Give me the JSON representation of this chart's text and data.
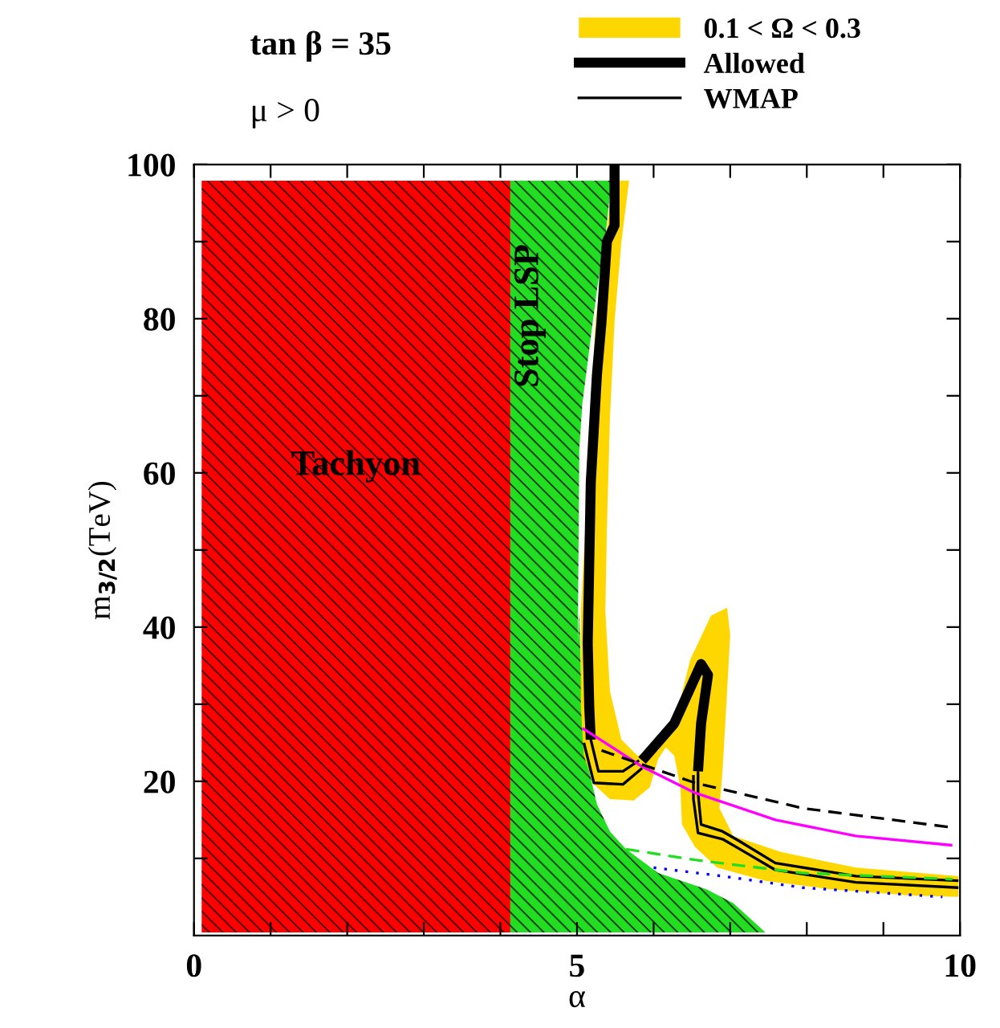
{
  "chart_data": {
    "type": "line",
    "xlabel": "α",
    "ylabel": "m$_{3/2}$(TeV)",
    "xlim": [
      0,
      10
    ],
    "ylim": [
      0,
      100
    ],
    "xticks": [
      0,
      {
        "value": 1,
        "label": null
      },
      {
        "value": 2,
        "label": null
      },
      {
        "value": 3,
        "label": null
      },
      {
        "value": 4,
        "label": null
      },
      5,
      {
        "value": 6,
        "label": null
      },
      {
        "value": 7,
        "label": null
      },
      {
        "value": 8,
        "label": null
      },
      {
        "value": 9,
        "label": null
      },
      10
    ],
    "yticks": [
      {
        "value": 10,
        "label": null
      },
      20,
      {
        "value": 30,
        "label": null
      },
      40,
      {
        "value": 50,
        "label": null
      },
      60,
      {
        "value": 70,
        "label": null
      },
      80,
      {
        "value": 90,
        "label": null
      },
      100
    ],
    "grid": false,
    "legend": "top",
    "annotations": [
      "tan β = 35",
      "μ > 0"
    ],
    "series": [
      {
        "type": "area",
        "name": "Tachyon",
        "color": "#ff0000",
        "x": [
          0.1,
          4.13,
          4.13,
          0.1
        ],
        "values": [
          0.4,
          0.4,
          97.9,
          97.9
        ]
      },
      {
        "type": "area",
        "name": "Stop LSP",
        "color": "#22dd22",
        "x": [
          4.13,
          5.45,
          5.37,
          5.26,
          5.16,
          5.07,
          5.03,
          5.01,
          5.03,
          5.07,
          5.16,
          5.26,
          5.43,
          5.64,
          6.06,
          6.69,
          7.04,
          7.46,
          4.13
        ],
        "values": [
          97.9,
          97.9,
          90.6,
          83.7,
          76,
          69,
          63,
          38,
          42,
          26.9,
          21.3,
          17,
          13.5,
          11.2,
          8.1,
          6,
          4.2,
          0.4,
          0.4
        ]
      },
      {
        "type": "area",
        "name": "0.1 < Ω < 0.3",
        "color": "#ffd700",
        "x": [
          5.47,
          5.68,
          5.58,
          5.49,
          5.43,
          5.39,
          5.37,
          5.43,
          5.58,
          5.79,
          6.06,
          6.27,
          6.48,
          6.75,
          6.96,
          7.0,
          6.96,
          6.9,
          6.86,
          7.04,
          7.67,
          8.64,
          9.98,
          9.98,
          9.35,
          8.3,
          7.46,
          6.83,
          6.54,
          6.37,
          6.35,
          6.27,
          6.16,
          6.06,
          5.95,
          5.74,
          5.43,
          5.22,
          5.09,
          5.05,
          5.05,
          5.14,
          5.24
        ],
        "values": [
          97.9,
          97.9,
          90,
          79.6,
          67.1,
          52.5,
          42.1,
          31.7,
          25.4,
          23.3,
          24,
          27.5,
          35.8,
          41.5,
          42.5,
          39,
          31.7,
          21.3,
          16.5,
          12.9,
          10.8,
          8.8,
          7.7,
          5.0,
          5.2,
          6.0,
          7.1,
          8.8,
          11.5,
          14.4,
          19.2,
          23.3,
          24.4,
          22.9,
          19.2,
          17.5,
          17.7,
          19.6,
          23.3,
          29.6,
          42.1,
          58.8,
          79.6
        ]
      },
      {
        "name": "Allowed",
        "color": "#000000",
        "line_style": "solid",
        "x": [
          5.49,
          5.49,
          5.39,
          5.32,
          5.26,
          5.18,
          5.14,
          5.16,
          5.18,
          5.5,
          5.85,
          6.27,
          6.62,
          6.71,
          6.62,
          6.58
        ],
        "values": [
          100,
          92.1,
          90,
          79.6,
          72.7,
          58.8,
          37.9,
          29.6,
          25.4,
          null,
          22.7,
          27.5,
          35.2,
          33.8,
          27.5,
          21.3
        ]
      },
      {
        "name": "WMAP",
        "color": "#000000",
        "line_style": "solid",
        "x": [
          5.18,
          5.28,
          5.6,
          5.81,
          6.2,
          6.58,
          6.58,
          6.62,
          6.9,
          7.11,
          7.59,
          8.64,
          9.98
        ],
        "values": [
          25.4,
          21.3,
          21.3,
          22.7,
          null,
          21.3,
          18.5,
          14.4,
          13.5,
          12.3,
          9.4,
          7.7,
          7.1
        ]
      },
      {
        "color": "#000000",
        "line_style": "solid",
        "x": [
          5.09,
          5.22,
          5.6,
          5.85,
          6.2,
          6.52,
          6.52,
          6.58,
          6.9,
          7.11,
          7.59,
          8.64,
          9.98
        ],
        "values": [
          25,
          19.8,
          19.6,
          21.7,
          null,
          20.8,
          17.7,
          13.3,
          12.5,
          11.3,
          8.5,
          6.9,
          6.2
        ]
      },
      {
        "color": "#ff00ff",
        "line_style": "solid",
        "x": [
          5.07,
          5.85,
          6.54,
          7.59,
          8.64,
          9.9
        ],
        "values": [
          26.9,
          21.9,
          18.5,
          15,
          12.9,
          11.7
        ]
      },
      {
        "color": "#000000",
        "line_style": "dashed",
        "x": [
          5.32,
          6.54,
          7.95,
          9.9
        ],
        "values": [
          24,
          19.8,
          16.5,
          14
        ]
      },
      {
        "color": "#22dd22",
        "line_style": "dashed",
        "x": [
          5.64,
          6.54,
          7.95,
          9.9
        ],
        "values": [
          11.2,
          9.8,
          8.1,
          7.3
        ]
      },
      {
        "color": "#0000ff",
        "line_style": "dotted",
        "x": [
          6.0,
          6.9,
          7.95,
          9.77
        ],
        "values": [
          8.8,
          7.7,
          6.2,
          5.0
        ]
      }
    ]
  }
}
